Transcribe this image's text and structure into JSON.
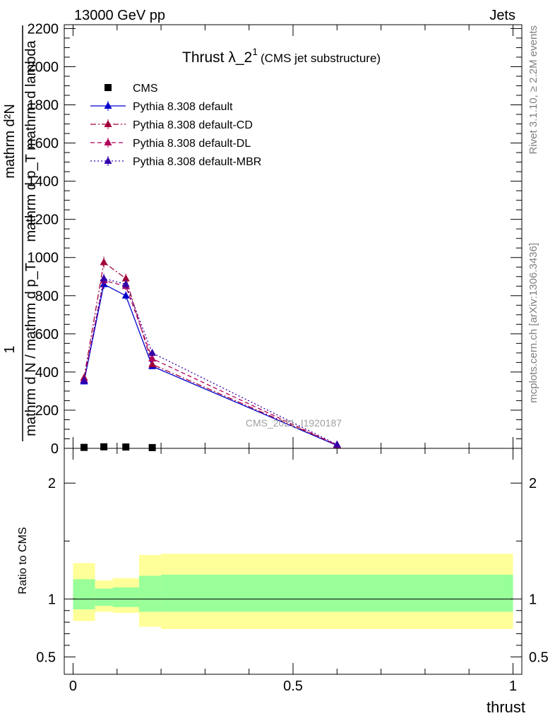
{
  "header": {
    "energy_label": "13000 GeV pp",
    "category_label": "Jets",
    "watermark": "CMS_2021_I1920187",
    "side_rivet": "Rivet 3.1.10, ≥ 2.2M events",
    "side_mcplots": "mcplots.cern.ch [arXiv:1306.3436]"
  },
  "title": {
    "main": "Thrust λ_2",
    "superscript": "1",
    "sub": "(CMS jet substructure)"
  },
  "axes": {
    "ylabel_top": "mathrm d²N",
    "ylabel_mid": "mathrm d p_T mathrm d lambda",
    "ylabel_one": "1",
    "ylabel_bottom": "mathrm d N / mathrm d p_T",
    "ratio_ylabel": "Ratio to CMS",
    "xlabel": "thrust"
  },
  "colors": {
    "pythia_default": "#0000cc",
    "pythia_cd": "#a3003c",
    "pythia_dl": "#b0005a",
    "pythia_mbr": "#3300aa",
    "band_inner": "#99ff99",
    "band_outer": "#ffff99"
  },
  "chart_data": [
    {
      "type": "line",
      "panel": "main",
      "xlim": [
        -0.02,
        1.02
      ],
      "ylim": [
        0,
        2220
      ],
      "x_ticks": [
        0,
        0.5,
        1
      ],
      "y_ticks": [
        0,
        200,
        400,
        600,
        800,
        1000,
        1200,
        1400,
        1600,
        1800,
        2000,
        2200
      ],
      "y_tick_labels": [
        "0",
        "200",
        "400",
        "600",
        "800",
        "1000",
        "1200",
        "1400",
        "1600",
        "1800",
        "2000",
        "2200"
      ],
      "legend_position": "top-left",
      "series": [
        {
          "name": "CMS",
          "style": "data",
          "x": [
            0.025,
            0.07,
            0.12,
            0.18
          ],
          "y": [
            5,
            8,
            7,
            4
          ]
        },
        {
          "name": "Pythia 8.308 default",
          "style": "solid",
          "x": [
            0.025,
            0.07,
            0.12,
            0.18,
            0.6
          ],
          "y": [
            350,
            860,
            800,
            430,
            15
          ],
          "err": [
            15,
            25,
            22,
            15,
            4
          ]
        },
        {
          "name": "Pythia 8.308 default-CD",
          "style": "dashdot",
          "x": [
            0.025,
            0.07,
            0.12,
            0.18,
            0.6
          ],
          "y": [
            370,
            975,
            890,
            440,
            18
          ],
          "err": [
            15,
            30,
            25,
            15,
            4
          ]
        },
        {
          "name": "Pythia 8.308 default-DL",
          "style": "dashed",
          "x": [
            0.025,
            0.07,
            0.12,
            0.18,
            0.6
          ],
          "y": [
            360,
            880,
            850,
            470,
            17
          ],
          "err": [
            15,
            25,
            22,
            15,
            4
          ]
        },
        {
          "name": "Pythia 8.308 default-MBR",
          "style": "dotted",
          "x": [
            0.025,
            0.07,
            0.12,
            0.18,
            0.6
          ],
          "y": [
            355,
            890,
            860,
            500,
            20
          ],
          "err": [
            15,
            25,
            22,
            15,
            4
          ]
        }
      ]
    },
    {
      "type": "area",
      "panel": "ratio",
      "xlim": [
        -0.02,
        1.02
      ],
      "ylim": [
        0.35,
        2.3
      ],
      "y_ticks": [
        0.5,
        1,
        2
      ],
      "y_tick_labels": [
        "0.5",
        "1",
        "2"
      ],
      "x_tick_labels": [
        "0",
        "0.5",
        "1"
      ],
      "reference_line": 1,
      "bins": [
        {
          "x0": 0.0,
          "x1": 0.05,
          "inner": [
            0.91,
            1.17
          ],
          "outer": [
            0.81,
            1.31
          ]
        },
        {
          "x0": 0.05,
          "x1": 0.09,
          "inner": [
            0.94,
            1.09
          ],
          "outer": [
            0.89,
            1.16
          ]
        },
        {
          "x0": 0.09,
          "x1": 0.15,
          "inner": [
            0.93,
            1.1
          ],
          "outer": [
            0.88,
            1.18
          ]
        },
        {
          "x0": 0.15,
          "x1": 0.2,
          "inner": [
            0.89,
            1.2
          ],
          "outer": [
            0.76,
            1.38
          ]
        },
        {
          "x0": 0.2,
          "x1": 1.0,
          "inner": [
            0.89,
            1.21
          ],
          "outer": [
            0.74,
            1.39
          ]
        }
      ]
    }
  ]
}
